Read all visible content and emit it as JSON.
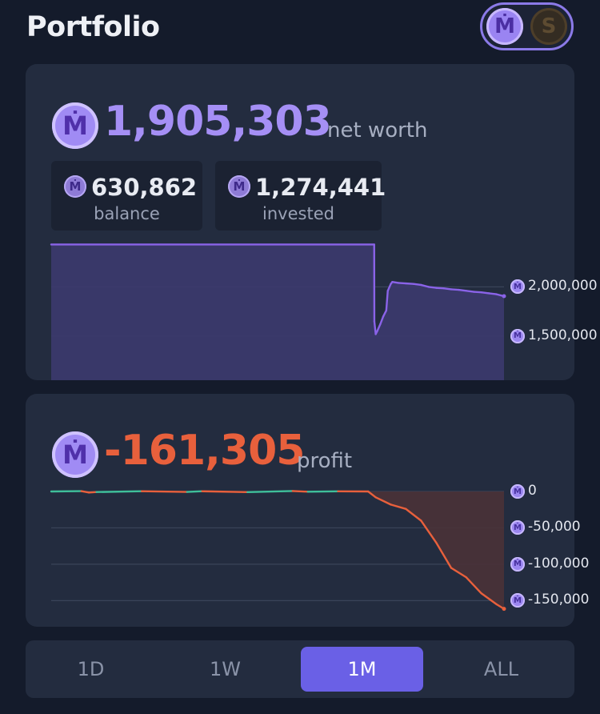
{
  "header": {
    "title": "Portfolio",
    "currency_toggle": {
      "mana_symbol": "Ṁ",
      "cash_symbol": "S"
    }
  },
  "coin_symbol": "Ṁ",
  "networth": {
    "value": "1,905,303",
    "label": "net worth",
    "balance": {
      "value": "630,862",
      "label": "balance"
    },
    "invested": {
      "value": "1,274,441",
      "label": "invested"
    }
  },
  "profit": {
    "value": "-161,305",
    "label": "profit"
  },
  "colors": {
    "accent": "#a08bf4",
    "networth_line": "#8a63e8",
    "networth_fill": "#3c3a6e",
    "profit_negative": "#e8603c",
    "profit_positive": "#3fbf9a",
    "profit_fill": "#4a3237",
    "range_active": "#6a60e6"
  },
  "chart_data": [
    {
      "type": "area",
      "series_name": "net worth",
      "y_ticks": [
        {
          "value": 2000000,
          "label": "2,000,000"
        },
        {
          "value": 1500000,
          "label": "1,500,000"
        }
      ],
      "ylim": [
        1150000,
        2450000
      ],
      "x_days": [
        0,
        21.4,
        21.41,
        21.5,
        21.6,
        21.8,
        22.0,
        22.2,
        22.3,
        22.5,
        22.6,
        23.0,
        23.5,
        24.0,
        24.5,
        25.0,
        25.5,
        26.0,
        26.5,
        27.0,
        27.5,
        28.0,
        28.5,
        29.0,
        29.5,
        30.0
      ],
      "values": [
        2430000,
        2430000,
        1650000,
        1520000,
        1550000,
        1620000,
        1700000,
        1760000,
        1960000,
        2030000,
        2050000,
        2040000,
        2035000,
        2030000,
        2020000,
        2000000,
        1990000,
        1985000,
        1975000,
        1970000,
        1960000,
        1950000,
        1945000,
        1935000,
        1925000,
        1905303
      ]
    },
    {
      "type": "area",
      "series_name": "profit",
      "y_ticks": [
        {
          "value": 0,
          "label": "0"
        },
        {
          "value": -50000,
          "label": "-50,000"
        },
        {
          "value": -100000,
          "label": "-100,000"
        },
        {
          "value": -150000,
          "label": "-150,000"
        }
      ],
      "ylim": [
        -165000,
        0
      ],
      "x_days": [
        0,
        2,
        2.5,
        3,
        6,
        9,
        10,
        13,
        16,
        17,
        19,
        21,
        21.5,
        22.5,
        23.5,
        24.5,
        25.5,
        26.5,
        27.5,
        28.5,
        29.5,
        30
      ],
      "values": [
        0,
        500,
        -1500,
        -800,
        300,
        -600,
        300,
        -900,
        600,
        -300,
        200,
        0,
        -8000,
        -18000,
        -24000,
        -40000,
        -70000,
        -105000,
        -118000,
        -140000,
        -155000,
        -161305
      ]
    }
  ],
  "range_tabs": [
    {
      "label": "1D",
      "active": false
    },
    {
      "label": "1W",
      "active": false
    },
    {
      "label": "1M",
      "active": true
    },
    {
      "label": "ALL",
      "active": false
    }
  ]
}
